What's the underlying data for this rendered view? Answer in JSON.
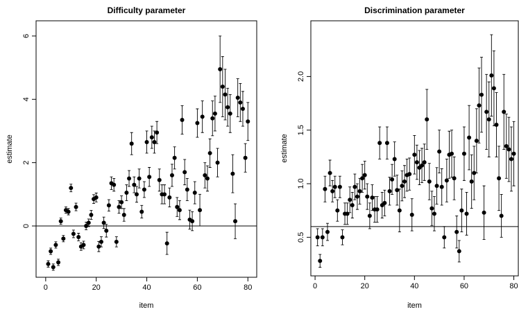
{
  "chart_data": [
    {
      "type": "scatter",
      "title": "Difficulty parameter",
      "xlabel": "item",
      "ylabel": "estimate",
      "color": "#000000",
      "x": [
        1,
        2,
        3,
        4,
        5,
        6,
        7,
        8,
        9,
        10,
        11,
        12,
        13,
        14,
        15,
        16,
        17,
        18,
        19,
        20,
        21,
        22,
        23,
        24,
        25,
        26,
        27,
        28,
        29,
        30,
        31,
        32,
        33,
        34,
        35,
        36,
        37,
        38,
        39,
        40,
        41,
        42,
        43,
        44,
        45,
        46,
        47,
        48,
        49,
        50,
        51,
        52,
        53,
        54,
        55,
        56,
        57,
        58,
        59,
        60,
        61,
        62,
        63,
        64,
        65,
        66,
        67,
        68,
        69,
        70,
        71,
        72,
        73,
        74,
        75,
        76,
        77,
        78,
        79,
        80
      ],
      "values": [
        -1.2,
        -0.8,
        -1.3,
        -0.6,
        -1.15,
        0.15,
        -0.4,
        0.5,
        0.45,
        1.2,
        -0.25,
        0.6,
        -0.35,
        -0.65,
        -0.6,
        0,
        0.1,
        0.35,
        0.85,
        0.9,
        -0.65,
        -0.5,
        0.1,
        -0.15,
        0.65,
        1.35,
        1.3,
        -0.5,
        0.6,
        0.75,
        0.35,
        1.05,
        1.5,
        2.6,
        1.3,
        1.0,
        1.5,
        0.45,
        1.15,
        2.65,
        1.55,
        2.8,
        2.65,
        2.95,
        1.45,
        1.0,
        1.0,
        -0.55,
        0.9,
        1.6,
        2.15,
        0.6,
        0.5,
        3.35,
        1.7,
        1.15,
        0.2,
        0.15,
        1.05,
        3.25,
        0.5,
        3.45,
        1.6,
        1.5,
        2.3,
        3.4,
        3.55,
        2.0,
        4.95,
        4.4,
        4.15,
        3.75,
        3.55,
        1.65,
        0.15,
        4.05,
        3.9,
        3.7,
        2.15,
        3.3
      ],
      "errors": [
        0.1,
        0.1,
        0.1,
        0.1,
        0.1,
        0.1,
        0.1,
        0.1,
        0.1,
        0.12,
        0.12,
        0.12,
        0.12,
        0.12,
        0.12,
        0.12,
        0.12,
        0.14,
        0.14,
        0.14,
        0.16,
        0.16,
        0.18,
        0.2,
        0.18,
        0.2,
        0.2,
        0.16,
        0.2,
        0.2,
        0.2,
        0.25,
        0.25,
        0.35,
        0.25,
        0.25,
        0.3,
        0.2,
        0.25,
        0.35,
        0.3,
        0.35,
        0.35,
        0.35,
        0.35,
        0.3,
        0.3,
        0.35,
        0.3,
        0.35,
        0.35,
        0.3,
        0.3,
        0.45,
        0.4,
        0.35,
        0.3,
        0.3,
        0.35,
        0.45,
        0.5,
        0.5,
        0.4,
        0.4,
        0.45,
        0.55,
        0.55,
        0.45,
        1.05,
        0.95,
        0.8,
        0.6,
        0.6,
        0.6,
        0.55,
        0.6,
        0.6,
        0.55,
        0.45,
        0.6
      ],
      "reference_line": 0,
      "xlim": [
        -3.8,
        83.5
      ],
      "ylim": [
        -1.62,
        6.48
      ],
      "xticks": [
        0,
        20,
        40,
        60,
        80
      ],
      "yticks": [
        0,
        2,
        4,
        6
      ]
    },
    {
      "type": "scatter",
      "title": "Discrimination parameter",
      "xlabel": "item",
      "ylabel": "estimate",
      "color": "#000000",
      "x": [
        1,
        2,
        3,
        4,
        5,
        6,
        7,
        8,
        9,
        10,
        11,
        12,
        13,
        14,
        15,
        16,
        17,
        18,
        19,
        20,
        21,
        22,
        23,
        24,
        25,
        26,
        27,
        28,
        29,
        30,
        31,
        32,
        33,
        34,
        35,
        36,
        37,
        38,
        39,
        40,
        41,
        42,
        43,
        44,
        45,
        46,
        47,
        48,
        49,
        50,
        51,
        52,
        53,
        54,
        55,
        56,
        57,
        58,
        59,
        60,
        61,
        62,
        63,
        64,
        65,
        66,
        67,
        68,
        69,
        70,
        71,
        72,
        73,
        74,
        75,
        76,
        77,
        78,
        79,
        80
      ],
      "values": [
        0.5,
        0.28,
        0.5,
        0.95,
        0.55,
        1.1,
        0.93,
        0.97,
        0.75,
        0.97,
        0.5,
        0.72,
        0.72,
        0.85,
        0.8,
        0.97,
        0.88,
        0.93,
        1.05,
        1.08,
        0.88,
        0.7,
        0.87,
        0.76,
        0.76,
        1.38,
        0.8,
        0.82,
        1.38,
        0.93,
        1.04,
        1.23,
        0.94,
        0.75,
        0.98,
        1.02,
        1.08,
        1.09,
        0.71,
        1.27,
        1.2,
        1.15,
        1.17,
        1.2,
        1.6,
        1.02,
        0.77,
        0.72,
        0.98,
        1.3,
        0.97,
        0.5,
        1.03,
        1.27,
        1.28,
        1.05,
        0.55,
        0.37,
        0.75,
        1.28,
        0.72,
        1.43,
        1.02,
        1.1,
        1.4,
        1.73,
        1.83,
        0.73,
        1.67,
        1.6,
        2.01,
        1.89,
        1.55,
        1.05,
        0.7,
        1.67,
        1.35,
        1.32,
        1.23,
        1.28
      ],
      "errors": [
        0.08,
        0.06,
        0.08,
        0.12,
        0.08,
        0.12,
        0.1,
        0.1,
        0.1,
        0.1,
        0.07,
        0.1,
        0.1,
        0.12,
        0.12,
        0.12,
        0.12,
        0.12,
        0.13,
        0.13,
        0.12,
        0.12,
        0.12,
        0.12,
        0.12,
        0.15,
        0.12,
        0.12,
        0.15,
        0.13,
        0.14,
        0.16,
        0.14,
        0.2,
        0.14,
        0.15,
        0.15,
        0.15,
        0.15,
        0.18,
        0.16,
        0.16,
        0.16,
        0.17,
        0.28,
        0.17,
        0.16,
        0.16,
        0.17,
        0.2,
        0.17,
        0.1,
        0.2,
        0.22,
        0.22,
        0.2,
        0.15,
        0.1,
        0.2,
        0.25,
        0.2,
        0.3,
        0.25,
        0.25,
        0.3,
        0.35,
        0.35,
        0.25,
        0.35,
        0.35,
        0.38,
        0.35,
        0.3,
        0.3,
        0.2,
        0.35,
        0.3,
        0.3,
        0.3,
        0.3
      ],
      "reference_line": 0.6,
      "xlim": [
        -1.7,
        81.8
      ],
      "ylim": [
        0.14,
        2.52
      ],
      "xticks": [
        0,
        20,
        40,
        60,
        80
      ],
      "yticks": [
        0.5,
        {
          "value": 1,
          "label": "1.0"
        },
        1.5,
        {
          "value": 2,
          "label": "2.0"
        }
      ]
    }
  ]
}
